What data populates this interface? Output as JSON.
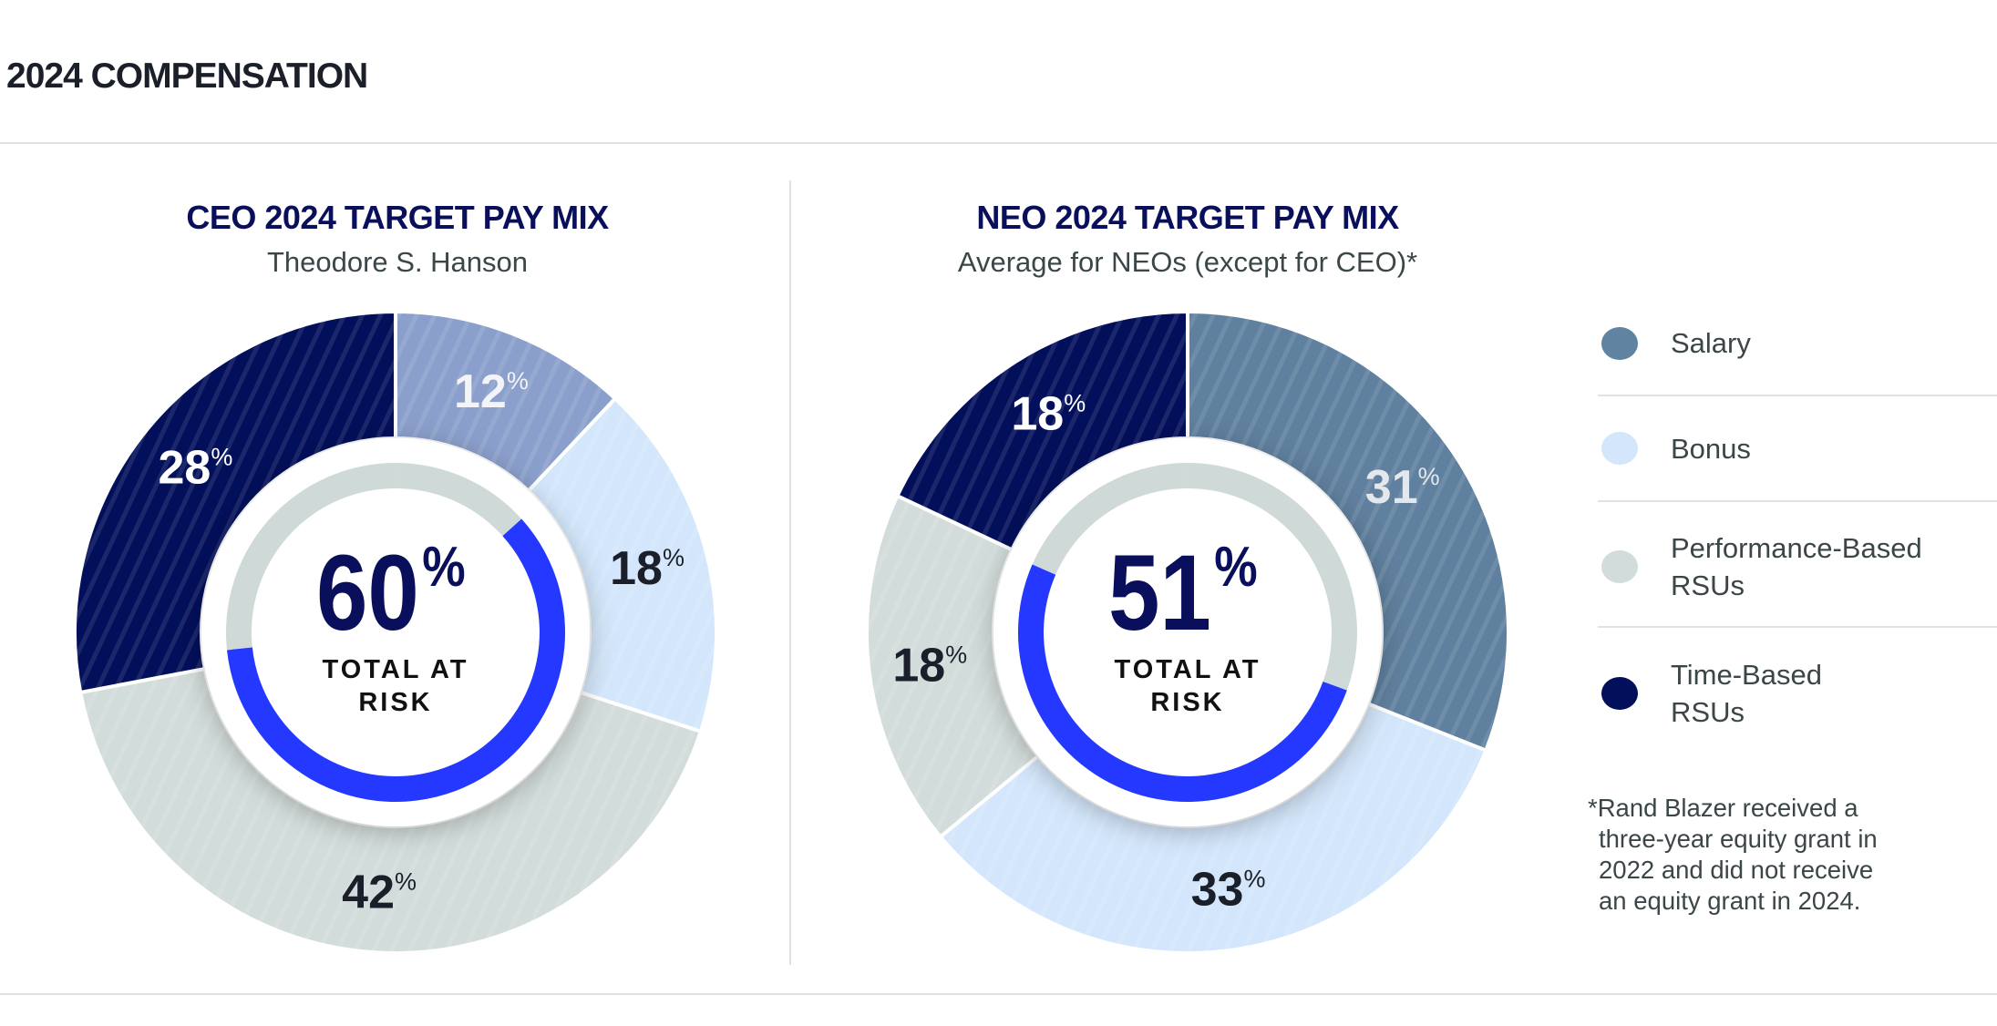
{
  "page": {
    "title": "2024 COMPENSATION"
  },
  "legend": [
    {
      "label": "Salary",
      "color": "#5f83a0"
    },
    {
      "label": "Bonus",
      "color": "#d3e6fb"
    },
    {
      "label": "Performance-Based RSUs",
      "line1": "Performance-Based",
      "line2": "RSUs",
      "color": "#d2dcda"
    },
    {
      "label": "Time-Based RSUs",
      "line1": "Time-Based",
      "line2": "RSUs",
      "color": "#020f5a"
    }
  ],
  "footnote": {
    "line1": "*Rand Blazer received a",
    "line2": "three-year equity grant in",
    "line3": "2022 and did not receive",
    "line4": "an equity grant in 2024."
  },
  "accent_color": "#2438ff",
  "chart_data": [
    {
      "type": "pie",
      "variant": "donut",
      "title": "CEO 2024 TARGET PAY MIX",
      "subtitle": "Theodore S. Hanson",
      "categories": [
        "Salary",
        "Bonus",
        "Performance-Based RSUs",
        "Time-Based RSUs"
      ],
      "values": [
        12,
        18,
        42,
        28
      ],
      "labels": [
        "12",
        "18",
        "42",
        "28"
      ],
      "colors": [
        "#8a9fcb",
        "#d3e6fb",
        "#d2dcda",
        "#020f5a"
      ],
      "label_colors": [
        "#f2f4f8",
        "#1b1f2a",
        "#1b1f2a",
        "#ffffff"
      ],
      "unit": "%",
      "center": {
        "value": 60,
        "value_text": "60",
        "unit": "%",
        "label_line1": "TOTAL AT",
        "label_line2": "RISK"
      }
    },
    {
      "type": "pie",
      "variant": "donut",
      "title": "NEO 2024 TARGET PAY MIX",
      "subtitle": "Average for NEOs (except for CEO)*",
      "categories": [
        "Salary",
        "Bonus",
        "Performance-Based RSUs",
        "Time-Based RSUs"
      ],
      "values": [
        31,
        33,
        18,
        18
      ],
      "labels": [
        "31",
        "33",
        "18",
        "18"
      ],
      "colors": [
        "#5f809e",
        "#d3e6fb",
        "#d2dcda",
        "#020f5a"
      ],
      "label_colors": [
        "#e4e8ec",
        "#1b1f2a",
        "#1b1f2a",
        "#ffffff"
      ],
      "unit": "%",
      "center": {
        "value": 51,
        "value_text": "51",
        "unit": "%",
        "label_line1": "TOTAL AT",
        "label_line2": "RISK"
      }
    }
  ]
}
